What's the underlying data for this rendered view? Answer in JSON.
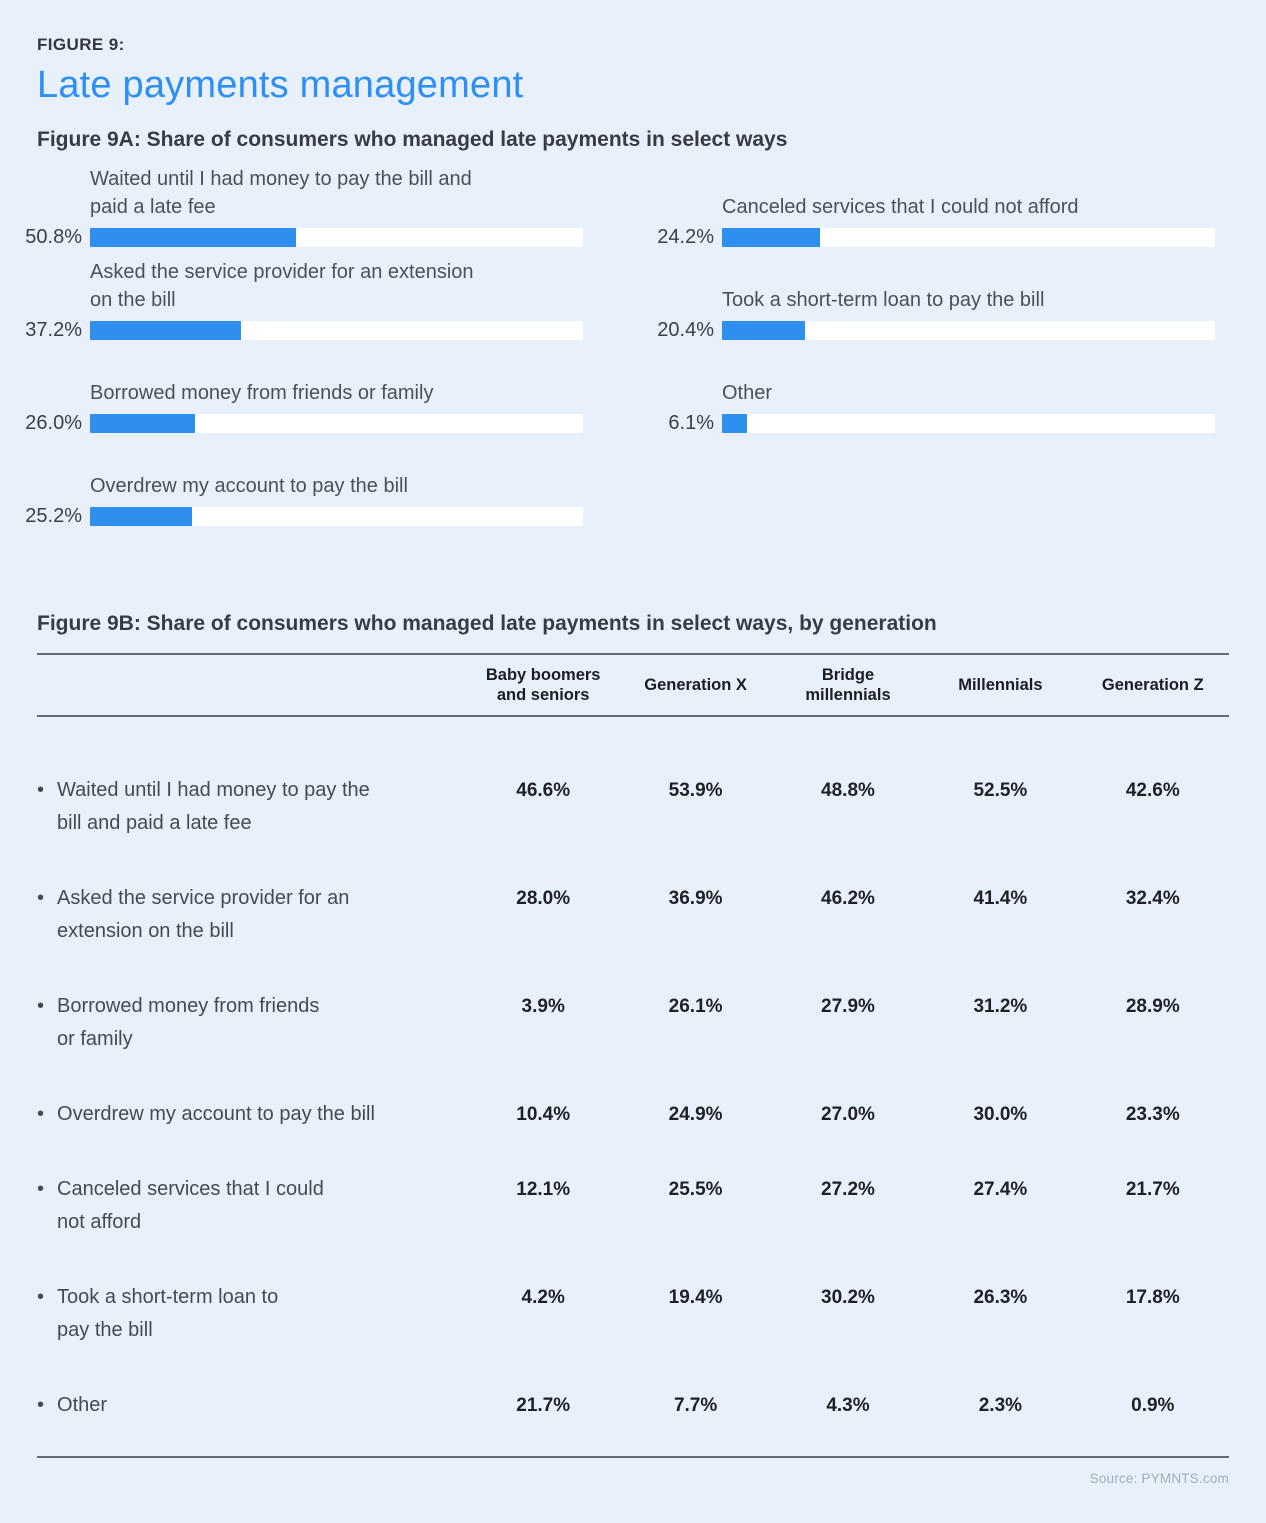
{
  "page": {
    "figure_label": "FIGURE 9:",
    "title": "Late payments management",
    "source": "Source: PYMNTS.com"
  },
  "colors": {
    "background": "#e8f0fb",
    "bar_fill": "#2f8fef",
    "bar_track": "#ffffff",
    "title_blue": "#2d8ef4",
    "dark_text": "#33373e",
    "rule_gray": "#646b76"
  },
  "figure_9a": {
    "subtitle": "Figure 9A: Share of consumers who managed late payments in select ways",
    "columns": [
      {
        "items": [
          {
            "label": "Waited until I had money to pay the bill and\npaid a late fee",
            "value": 50.8,
            "value_label": "50.8%"
          },
          {
            "label": "Asked the service provider for an extension\non the bill",
            "value": 37.2,
            "value_label": "37.2%"
          },
          {
            "label": "Borrowed money from friends or family",
            "value": 26.0,
            "value_label": "26.0%"
          },
          {
            "label": "Overdrew my account to pay the bill",
            "value": 25.2,
            "value_label": "25.2%"
          }
        ]
      },
      {
        "items": [
          {
            "label": "Canceled services that I could not afford",
            "value": 24.2,
            "value_label": "24.2%"
          },
          {
            "label": "Took a short-term loan to pay the bill",
            "value": 20.4,
            "value_label": "20.4%"
          },
          {
            "label": "Other",
            "value": 6.1,
            "value_label": "6.1%"
          }
        ]
      }
    ]
  },
  "figure_9b": {
    "subtitle": "Figure 9B: Share of consumers who managed late payments in select ways, by generation",
    "column_headers": [
      "Baby boomers\nand seniors",
      "Generation X",
      "Bridge\nmillennials",
      "Millennials",
      "Generation Z"
    ],
    "rows": [
      {
        "label": "Waited until I had money to pay the\nbill and paid a late fee",
        "values": [
          "46.6%",
          "53.9%",
          "48.8%",
          "52.5%",
          "42.6%"
        ]
      },
      {
        "label": "Asked the service provider for an\nextension on the bill",
        "values": [
          "28.0%",
          "36.9%",
          "46.2%",
          "41.4%",
          "32.4%"
        ]
      },
      {
        "label": "Borrowed money from friends\nor family",
        "values": [
          "3.9%",
          "26.1%",
          "27.9%",
          "31.2%",
          "28.9%"
        ]
      },
      {
        "label": "Overdrew my account to pay the bill",
        "values": [
          "10.4%",
          "24.9%",
          "27.0%",
          "30.0%",
          "23.3%"
        ]
      },
      {
        "label": "Canceled services that I could\nnot afford",
        "values": [
          "12.1%",
          "25.5%",
          "27.2%",
          "27.4%",
          "21.7%"
        ]
      },
      {
        "label": "Took a short-term loan to\npay the bill",
        "values": [
          "4.2%",
          "19.4%",
          "30.2%",
          "26.3%",
          "17.8%"
        ]
      },
      {
        "label": "Other",
        "values": [
          "21.7%",
          "7.7%",
          "4.3%",
          "2.3%",
          "0.9%"
        ]
      }
    ]
  },
  "chart_data": [
    {
      "type": "bar",
      "title": "Figure 9A: Share of consumers who managed late payments in select ways",
      "orientation": "horizontal",
      "categories": [
        "Waited until I had money to pay the bill and paid a late fee",
        "Asked the service provider for an extension on the bill",
        "Borrowed money from friends or family",
        "Overdrew my account to pay the bill",
        "Canceled services that I could not afford",
        "Took a short-term loan to pay the bill",
        "Other"
      ],
      "values": [
        50.8,
        37.2,
        26.0,
        25.2,
        24.2,
        20.4,
        6.1
      ],
      "unit": "%",
      "xlabel": "",
      "ylabel": "",
      "legend": false,
      "grid": false,
      "layout": "two columns: first four categories left, last three right"
    },
    {
      "type": "table",
      "title": "Figure 9B: Share of consumers who managed late payments in select ways, by generation",
      "columns": [
        "Baby boomers and seniors",
        "Generation X",
        "Bridge millennials",
        "Millennials",
        "Generation Z"
      ],
      "rows": [
        {
          "label": "Waited until I had money to pay the bill and paid a late fee",
          "values": [
            46.6,
            53.9,
            48.8,
            52.5,
            42.6
          ]
        },
        {
          "label": "Asked the service provider for an extension on the bill",
          "values": [
            28.0,
            36.9,
            46.2,
            41.4,
            32.4
          ]
        },
        {
          "label": "Borrowed money from friends or family",
          "values": [
            3.9,
            26.1,
            27.9,
            31.2,
            28.9
          ]
        },
        {
          "label": "Overdrew my account to pay the bill",
          "values": [
            10.4,
            24.9,
            27.0,
            30.0,
            23.3
          ]
        },
        {
          "label": "Canceled services that I could not afford",
          "values": [
            12.1,
            25.5,
            27.2,
            27.4,
            21.7
          ]
        },
        {
          "label": "Took a short-term loan to pay the bill",
          "values": [
            4.2,
            19.4,
            30.2,
            26.3,
            17.8
          ]
        },
        {
          "label": "Other",
          "values": [
            21.7,
            7.7,
            4.3,
            2.3,
            0.9
          ]
        }
      ],
      "unit": "%"
    }
  ]
}
